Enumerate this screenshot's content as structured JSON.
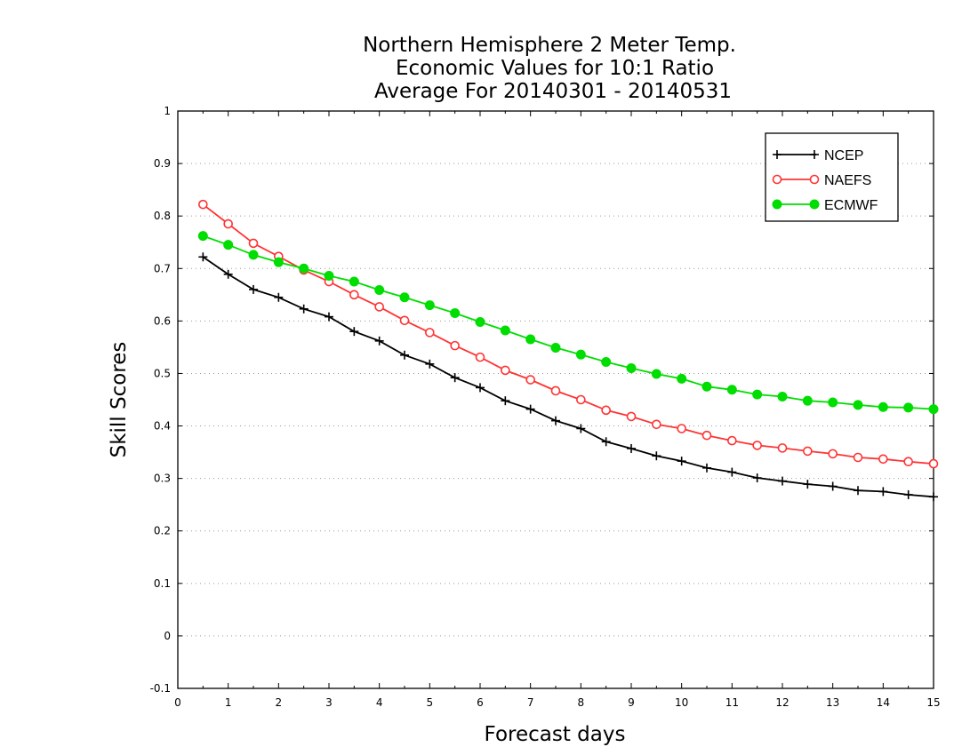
{
  "chart_data": {
    "type": "line",
    "title": [
      "Northern Hemisphere 2 Meter Temp.",
      "Economic Values for 10:1 Ratio",
      "Average For 20140301 - 20140531"
    ],
    "xlabel": "Forecast days",
    "ylabel": "Skill Scores",
    "xlim": [
      0,
      15
    ],
    "ylim": [
      -0.1,
      1
    ],
    "xticks": [
      0,
      1,
      2,
      3,
      4,
      5,
      6,
      7,
      8,
      9,
      10,
      11,
      12,
      13,
      14,
      15
    ],
    "xtick_labels": [
      "0",
      "1",
      "2",
      "3",
      "4",
      "5",
      "6",
      "7",
      "8",
      "9",
      "10",
      "11",
      "12",
      "13",
      "14",
      "15"
    ],
    "yticks": [
      -0.1,
      0,
      0.1,
      0.2,
      0.3,
      0.4,
      0.5,
      0.6,
      0.7,
      0.8,
      0.9,
      1
    ],
    "ytick_labels": [
      "-0.1",
      "0",
      "0.1",
      "0.2",
      "0.3",
      "0.4",
      "0.5",
      "0.6",
      "0.7",
      "0.8",
      "0.9",
      "1"
    ],
    "grid": "horizontal-dotted",
    "legend_position": "top-right",
    "x": [
      0.5,
      1,
      1.5,
      2,
      2.5,
      3,
      3.5,
      4,
      4.5,
      5,
      5.5,
      6,
      6.5,
      7,
      7.5,
      8,
      8.5,
      9,
      9.5,
      10,
      10.5,
      11,
      11.5,
      12,
      12.5,
      13,
      13.5,
      14,
      14.5,
      15
    ],
    "series": [
      {
        "name": "NCEP",
        "color": "#000000",
        "marker": "plus",
        "values": [
          0.722,
          0.689,
          0.66,
          0.645,
          0.623,
          0.608,
          0.58,
          0.562,
          0.535,
          0.518,
          0.492,
          0.473,
          0.448,
          0.432,
          0.41,
          0.395,
          0.37,
          0.357,
          0.343,
          0.333,
          0.32,
          0.312,
          0.301,
          0.295,
          0.289,
          0.285,
          0.277,
          0.275,
          0.269,
          0.265
        ]
      },
      {
        "name": "NAEFS",
        "color": "#ff3333",
        "marker": "open-circle",
        "values": [
          0.822,
          0.785,
          0.748,
          0.723,
          0.697,
          0.675,
          0.65,
          0.627,
          0.601,
          0.578,
          0.553,
          0.531,
          0.506,
          0.488,
          0.467,
          0.45,
          0.43,
          0.418,
          0.403,
          0.395,
          0.382,
          0.372,
          0.363,
          0.358,
          0.352,
          0.347,
          0.34,
          0.337,
          0.332,
          0.328
        ]
      },
      {
        "name": "ECMWF",
        "color": "#00dd00",
        "marker": "filled-circle",
        "values": [
          0.762,
          0.745,
          0.726,
          0.712,
          0.7,
          0.686,
          0.675,
          0.659,
          0.645,
          0.63,
          0.615,
          0.598,
          0.582,
          0.565,
          0.549,
          0.536,
          0.522,
          0.51,
          0.499,
          0.49,
          0.475,
          0.469,
          0.46,
          0.456,
          0.448,
          0.445,
          0.44,
          0.436,
          0.435,
          0.432
        ]
      }
    ]
  }
}
